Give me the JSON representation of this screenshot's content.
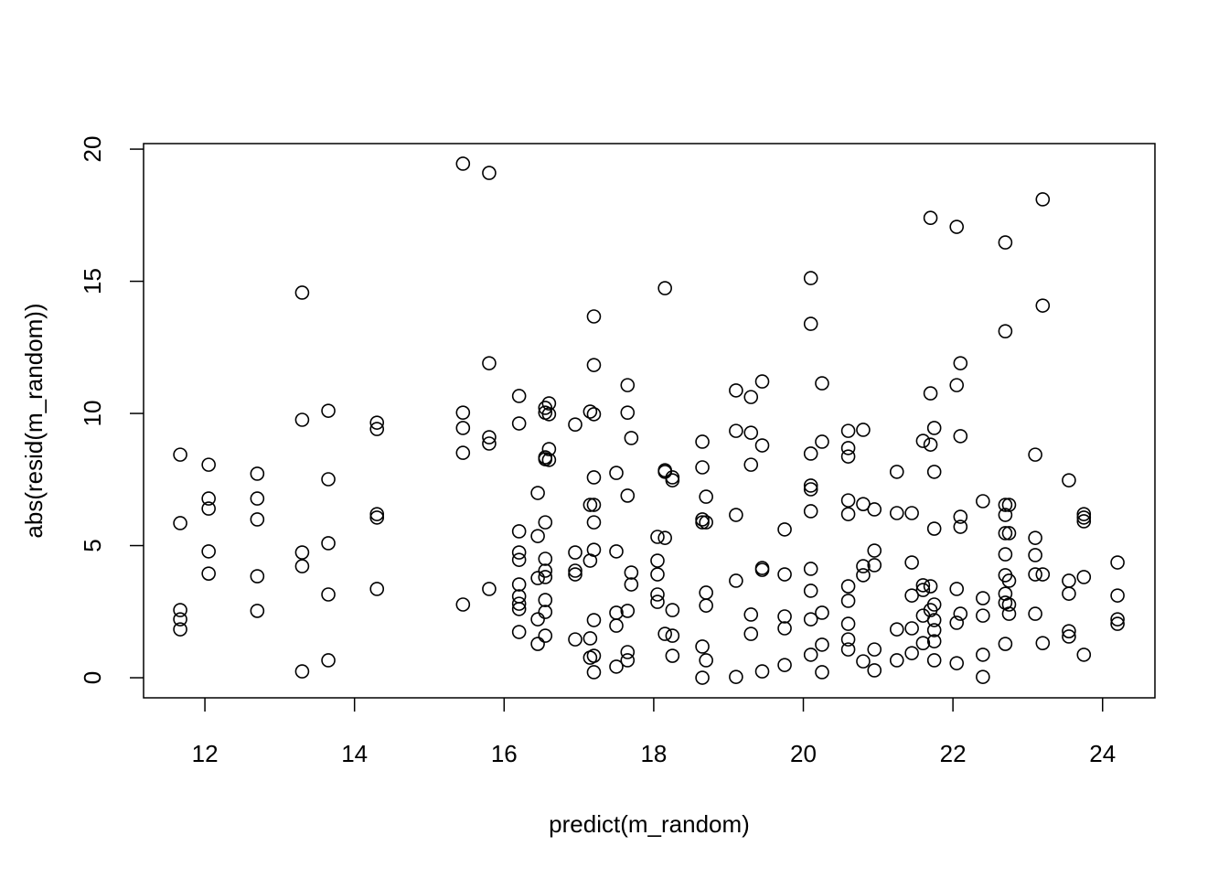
{
  "chart_data": {
    "type": "scatter",
    "x_label": "predict(m_random)",
    "y_label": "abs(resid(m_random))",
    "xlim": [
      11.18,
      24.7
    ],
    "ylim": [
      -0.76,
      20.21
    ],
    "xticks": [
      12,
      14,
      16,
      18,
      20,
      22,
      24
    ],
    "yticks": [
      0,
      5,
      10,
      15,
      20
    ],
    "color": "#000000",
    "x": [
      11.67,
      11.67,
      11.67,
      11.67,
      11.67,
      12.05,
      12.05,
      12.05,
      12.05,
      12.05,
      12.7,
      12.7,
      12.7,
      12.7,
      12.7,
      13.3,
      13.3,
      13.3,
      13.3,
      13.3,
      13.65,
      13.65,
      13.65,
      13.65,
      13.65,
      14.3,
      14.3,
      14.3,
      14.3,
      14.3,
      15.45,
      15.45,
      15.45,
      15.45,
      15.45,
      15.8,
      15.8,
      15.8,
      15.8,
      15.8,
      16.2,
      16.2,
      16.2,
      16.2,
      16.2,
      16.2,
      16.2,
      16.2,
      16.2,
      16.2,
      16.45,
      16.45,
      16.45,
      16.45,
      16.45,
      16.55,
      16.55,
      16.55,
      16.55,
      16.55,
      16.55,
      16.55,
      16.55,
      16.55,
      16.55,
      16.55,
      16.6,
      16.6,
      16.6,
      16.6,
      16.95,
      16.95,
      16.95,
      16.95,
      16.95,
      17.15,
      17.15,
      17.15,
      17.15,
      17.15,
      17.2,
      17.2,
      17.2,
      17.2,
      17.2,
      17.2,
      17.2,
      17.2,
      17.2,
      17.2,
      17.5,
      17.5,
      17.5,
      17.5,
      17.5,
      17.65,
      17.65,
      17.65,
      17.65,
      17.65,
      17.65,
      17.7,
      17.7,
      17.7,
      18.05,
      18.05,
      18.05,
      18.05,
      18.05,
      18.15,
      18.15,
      18.15,
      18.15,
      18.15,
      18.25,
      18.25,
      18.25,
      18.25,
      18.25,
      18.65,
      18.65,
      18.65,
      18.65,
      18.65,
      18.65,
      18.7,
      18.7,
      18.7,
      18.7,
      18.7,
      19.1,
      19.1,
      19.1,
      19.1,
      19.1,
      19.3,
      19.3,
      19.3,
      19.3,
      19.3,
      19.45,
      19.45,
      19.45,
      19.45,
      19.45,
      19.75,
      19.75,
      19.75,
      19.75,
      19.75,
      20.1,
      20.1,
      20.1,
      20.1,
      20.1,
      20.1,
      20.1,
      20.1,
      20.1,
      20.1,
      20.25,
      20.25,
      20.25,
      20.25,
      20.25,
      20.6,
      20.6,
      20.6,
      20.6,
      20.6,
      20.6,
      20.6,
      20.6,
      20.6,
      20.6,
      20.8,
      20.8,
      20.8,
      20.8,
      20.8,
      20.95,
      20.95,
      20.95,
      20.95,
      20.95,
      21.25,
      21.25,
      21.25,
      21.25,
      21.45,
      21.45,
      21.45,
      21.45,
      21.45,
      21.6,
      21.6,
      21.6,
      21.6,
      21.6,
      21.7,
      21.7,
      21.7,
      21.7,
      21.7,
      21.75,
      21.75,
      21.75,
      21.75,
      21.75,
      21.75,
      21.75,
      21.75,
      22.05,
      22.05,
      22.05,
      22.05,
      22.05,
      22.1,
      22.1,
      22.1,
      22.1,
      22.1,
      22.4,
      22.4,
      22.4,
      22.4,
      22.4,
      22.7,
      22.7,
      22.7,
      22.7,
      22.7,
      22.7,
      22.7,
      22.7,
      22.7,
      22.7,
      22.75,
      22.75,
      22.75,
      22.75,
      22.75,
      23.1,
      23.1,
      23.1,
      23.1,
      23.1,
      23.2,
      23.2,
      23.2,
      23.2,
      23.55,
      23.55,
      23.55,
      23.55,
      23.55,
      23.75,
      23.75,
      23.75,
      23.75,
      23.75,
      24.2,
      24.2,
      24.2,
      24.2
    ],
    "values": [
      8.44,
      5.85,
      2.56,
      2.21,
      1.83,
      8.06,
      6.78,
      6.4,
      4.78,
      3.94,
      7.72,
      6.78,
      5.99,
      3.84,
      2.53,
      14.57,
      9.76,
      4.74,
      4.22,
      0.24,
      10.1,
      7.51,
      5.09,
      3.15,
      0.66,
      9.65,
      9.41,
      6.19,
      6.06,
      3.36,
      19.45,
      10.03,
      9.45,
      8.51,
      2.77,
      19.1,
      11.9,
      9.1,
      8.86,
      3.36,
      10.66,
      9.62,
      5.54,
      4.74,
      4.46,
      3.53,
      3.08,
      2.8,
      2.6,
      1.73,
      6.99,
      5.36,
      3.77,
      2.21,
      1.28,
      10.21,
      10.03,
      8.34,
      8.27,
      5.88,
      4.5,
      4.05,
      3.81,
      2.94,
      2.49,
      1.59,
      10.38,
      9.97,
      8.65,
      8.24,
      9.58,
      4.74,
      4.05,
      3.91,
      1.45,
      10.07,
      6.54,
      4.43,
      1.49,
      0.76,
      13.67,
      11.83,
      9.97,
      7.58,
      6.54,
      5.88,
      4.84,
      2.18,
      0.83,
      0.21,
      7.75,
      4.78,
      2.46,
      1.97,
      0.42,
      11.07,
      10.03,
      6.89,
      2.53,
      0.97,
      0.66,
      9.07,
      3.98,
      3.53,
      5.33,
      4.43,
      3.91,
      3.15,
      2.87,
      14.74,
      7.85,
      7.79,
      5.29,
      1.66,
      7.58,
      7.47,
      2.56,
      1.59,
      0.83,
      8.93,
      7.96,
      5.99,
      5.88,
      1.18,
      0,
      6.85,
      5.88,
      3.22,
      2.73,
      0.66,
      10.87,
      9.34,
      6.16,
      3.67,
      0.03,
      10.62,
      9.27,
      8.06,
      2.39,
      1.66,
      11.21,
      8.79,
      4.15,
      4.08,
      0.24,
      5.61,
      3.91,
      2.32,
      1.87,
      0.48,
      15.12,
      13.39,
      8.48,
      7.27,
      7.13,
      6.3,
      4.12,
      3.29,
      2.21,
      0.87,
      11.14,
      8.93,
      2.46,
      1.25,
      0.21,
      8.37,
      8.69,
      9.34,
      6.71,
      6.19,
      3.46,
      2.91,
      2.04,
      1.45,
      1.07,
      9.38,
      6.57,
      4.22,
      3.88,
      0.62,
      6.37,
      4.81,
      4.26,
      1.07,
      0.28,
      7.79,
      6.23,
      1.83,
      0.66,
      6.23,
      4.36,
      3.11,
      1.87,
      0.93,
      8.96,
      3.5,
      3.32,
      2.35,
      1.31,
      17.4,
      10.76,
      8.82,
      3.46,
      2.56,
      9.45,
      7.79,
      5.64,
      2.77,
      1.8,
      1.38,
      2.18,
      0.66,
      17.06,
      11.07,
      3.36,
      2.08,
      0.55,
      11.9,
      9.14,
      6.09,
      5.71,
      2.42,
      6.68,
      3.01,
      2.35,
      0.87,
      0.03,
      16.47,
      13.11,
      6.54,
      6.16,
      5.47,
      4.67,
      3.88,
      3.18,
      2.84,
      1.28,
      6.54,
      5.47,
      3.67,
      2.77,
      2.42,
      8.44,
      5.29,
      4.64,
      3.91,
      2.42,
      18.1,
      14.08,
      3.91,
      1.31,
      7.47,
      3.67,
      3.18,
      1.76,
      1.56,
      6.19,
      6.06,
      5.92,
      3.81,
      0.87,
      4.36,
      3.11,
      2.21,
      2.04
    ]
  }
}
